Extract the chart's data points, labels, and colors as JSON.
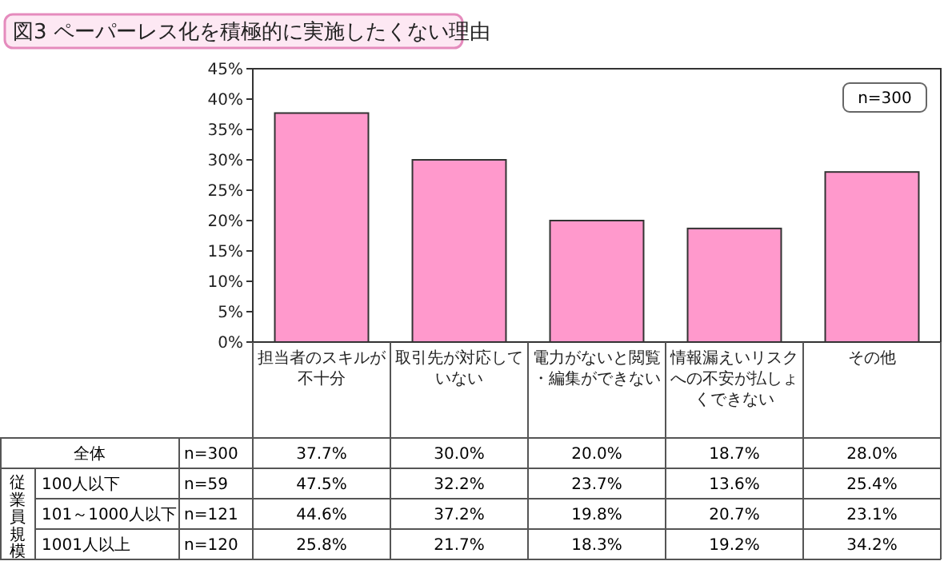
{
  "chart_data": {
    "type": "bar",
    "title": "図3 ペーパーレス化を積極的に実施したくない理由",
    "categories": [
      "担当者のスキルが不十分",
      "取引先が対応していない",
      "電力がないと閲覧・編集ができない",
      "情報漏えいリスクへの不安が払しょくできない",
      "その他"
    ],
    "series": [
      {
        "name": "全体",
        "color": "#ff99cc",
        "values": [
          37.7,
          30.0,
          20.0,
          18.7,
          28.0
        ],
        "value_labels": [
          "37.7%",
          "30.0%",
          "20.0%",
          "18.7%",
          "28.0%"
        ]
      }
    ],
    "annotations": [
      "n=300",
      "従業員規模",
      "n=300",
      "n=59",
      "n=121",
      "n=120",
      "100人以下",
      "101～1000人以下",
      "1001人以上",
      "47.5%",
      "32.2%",
      "23.7%",
      "13.6%",
      "25.4%",
      "44.6%",
      "37.2%",
      "19.8%",
      "20.7%",
      "23.1%",
      "25.8%",
      "21.7%",
      "18.3%",
      "19.2%",
      "34.2%"
    ],
    "ylim": [
      0,
      45
    ],
    "yticks": [
      {
        "value": 0,
        "label": "0%"
      },
      {
        "value": 5,
        "label": "5%"
      },
      {
        "value": 10,
        "label": "10%"
      },
      {
        "value": 15,
        "label": "15%"
      },
      {
        "value": 20,
        "label": "20%"
      },
      {
        "value": 25,
        "label": "25%"
      },
      {
        "value": 30,
        "label": "30%"
      },
      {
        "value": 35,
        "label": "35%"
      },
      {
        "value": 40,
        "label": "40%"
      },
      {
        "value": 45,
        "label": "45%"
      }
    ]
  }
}
